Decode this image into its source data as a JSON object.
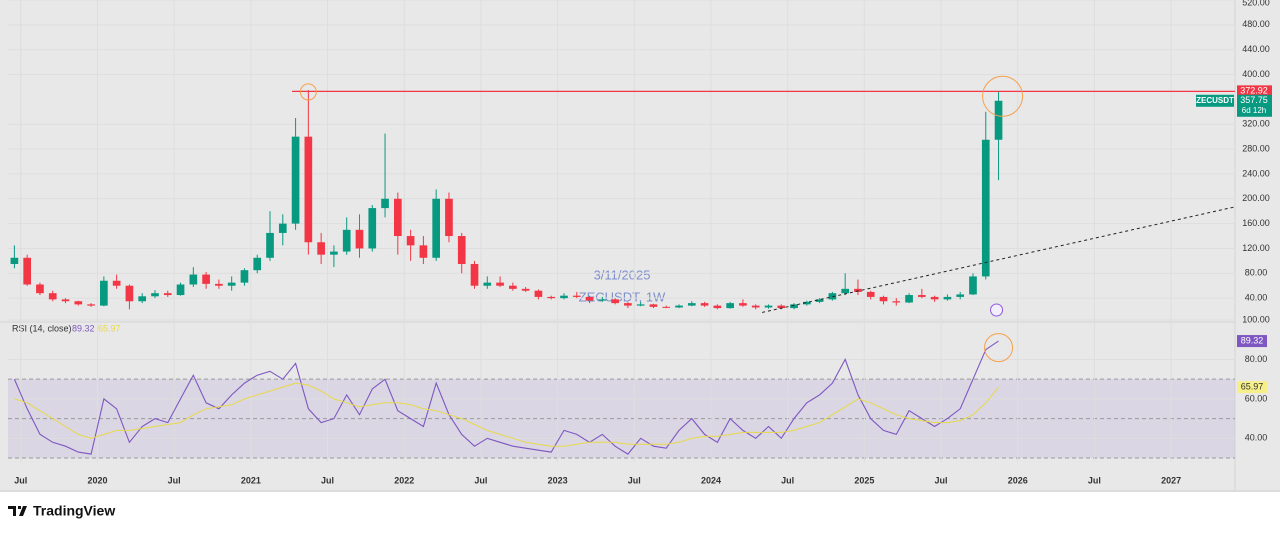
{
  "chart_data": [
    {
      "type": "candlestick",
      "symbol": "ZECUSDT",
      "watermark": [
        "3/11/2025",
        "ZECUSDT, 1W"
      ],
      "countdown": "6d 12h",
      "brand": "TradingView",
      "up_color": "#089981",
      "down_color": "#f23645",
      "x": [
        "2019-06",
        "2019-07",
        "2019-08",
        "2019-09",
        "2019-10",
        "2019-11",
        "2019-12",
        "2020-01",
        "2020-02",
        "2020-03",
        "2020-04",
        "2020-05",
        "2020-06",
        "2020-07",
        "2020-08",
        "2020-09",
        "2020-10",
        "2020-11",
        "2020-12",
        "2021-01",
        "2021-02",
        "2021-03",
        "2021-04",
        "2021-05",
        "2021-06",
        "2021-07",
        "2021-08",
        "2021-09",
        "2021-10",
        "2021-11",
        "2021-12",
        "2022-01",
        "2022-02",
        "2022-03",
        "2022-04",
        "2022-05",
        "2022-06",
        "2022-07",
        "2022-08",
        "2022-09",
        "2022-10",
        "2022-11",
        "2022-12",
        "2023-01",
        "2023-02",
        "2023-03",
        "2023-04",
        "2023-05",
        "2023-06",
        "2023-07",
        "2023-08",
        "2023-09",
        "2023-10",
        "2023-11",
        "2023-12",
        "2024-01",
        "2024-02",
        "2024-03",
        "2024-04",
        "2024-05",
        "2024-06",
        "2024-07",
        "2024-08",
        "2024-09",
        "2024-10",
        "2024-11",
        "2024-12",
        "2025-01",
        "2025-02",
        "2025-03",
        "2025-04",
        "2025-05",
        "2025-06",
        "2025-07",
        "2025-08",
        "2025-09",
        "2025-10",
        "2025-11"
      ],
      "open": [
        95,
        105,
        62,
        48,
        38,
        35,
        30,
        28,
        68,
        60,
        35,
        43,
        48,
        45,
        62,
        78,
        63,
        60,
        65,
        85,
        105,
        145,
        160,
        300,
        130,
        110,
        115,
        150,
        120,
        185,
        200,
        140,
        125,
        105,
        200,
        140,
        95,
        60,
        65,
        60,
        55,
        52,
        42,
        40,
        44,
        42,
        36,
        38,
        32,
        28,
        30,
        26,
        25,
        28,
        32,
        28,
        24,
        32,
        28,
        25,
        28,
        24,
        30,
        34,
        38,
        48,
        55,
        50,
        42,
        35,
        33,
        45,
        42,
        38,
        42,
        46,
        75,
        295
      ],
      "high": [
        125,
        110,
        65,
        52,
        40,
        36,
        32,
        75,
        78,
        62,
        48,
        53,
        52,
        65,
        90,
        82,
        70,
        75,
        88,
        110,
        180,
        175,
        330,
        375,
        145,
        125,
        170,
        175,
        190,
        305,
        210,
        150,
        140,
        215,
        210,
        145,
        100,
        75,
        75,
        65,
        58,
        54,
        44,
        48,
        50,
        44,
        42,
        40,
        34,
        34,
        31,
        28,
        30,
        35,
        34,
        30,
        34,
        38,
        30,
        30,
        30,
        32,
        36,
        40,
        50,
        80,
        70,
        52,
        44,
        40,
        48,
        55,
        44,
        46,
        50,
        80,
        340,
        372.92
      ],
      "low": [
        88,
        60,
        45,
        35,
        32,
        28,
        26,
        27,
        55,
        22,
        32,
        40,
        42,
        44,
        58,
        55,
        55,
        52,
        60,
        80,
        100,
        125,
        150,
        110,
        95,
        90,
        110,
        105,
        115,
        170,
        110,
        100,
        95,
        100,
        130,
        80,
        55,
        55,
        58,
        52,
        50,
        38,
        38,
        38,
        40,
        32,
        34,
        30,
        24,
        27,
        24,
        24,
        24,
        27,
        26,
        22,
        23,
        26,
        22,
        23,
        22,
        22,
        28,
        32,
        36,
        45,
        45,
        38,
        30,
        28,
        32,
        40,
        34,
        36,
        38,
        45,
        70,
        230
      ],
      "close": [
        105,
        62,
        48,
        38,
        35,
        30,
        28,
        68,
        60,
        35,
        43,
        48,
        45,
        62,
        78,
        63,
        60,
        65,
        85,
        105,
        145,
        160,
        300,
        130,
        110,
        115,
        150,
        120,
        185,
        200,
        140,
        125,
        105,
        200,
        140,
        95,
        60,
        65,
        60,
        55,
        52,
        42,
        40,
        44,
        42,
        36,
        38,
        32,
        28,
        30,
        26,
        25,
        28,
        32,
        28,
        24,
        32,
        28,
        25,
        28,
        24,
        30,
        34,
        38,
        48,
        55,
        50,
        42,
        35,
        33,
        45,
        42,
        38,
        42,
        46,
        75,
        295,
        357.75
      ],
      "resistance": 372.92,
      "resistance_from": "2021-05",
      "resistance_color": "#f23645",
      "trendline": {
        "x": [
          "2024-05",
          "2027-06"
        ],
        "values": [
          17,
          187
        ]
      },
      "xlim": [
        "2019-06",
        "2027-06"
      ],
      "xticks": [
        {
          "value": "2019-07",
          "label": "Jul"
        },
        {
          "value": "2020-01",
          "label": "2020"
        },
        {
          "value": "2020-07",
          "label": "Jul"
        },
        {
          "value": "2021-01",
          "label": "2021"
        },
        {
          "value": "2021-07",
          "label": "Jul"
        },
        {
          "value": "2022-01",
          "label": "2022"
        },
        {
          "value": "2022-07",
          "label": "Jul"
        },
        {
          "value": "2023-01",
          "label": "2023"
        },
        {
          "value": "2023-07",
          "label": "Jul"
        },
        {
          "value": "2024-01",
          "label": "2024"
        },
        {
          "value": "2024-07",
          "label": "Jul"
        },
        {
          "value": "2025-01",
          "label": "2025"
        },
        {
          "value": "2025-07",
          "label": "Jul"
        },
        {
          "value": "2026-01",
          "label": "2026"
        },
        {
          "value": "2026-07",
          "label": "Jul"
        },
        {
          "value": "2027-01",
          "label": "2027"
        }
      ],
      "ylim": [
        0,
        520
      ],
      "yticks": [
        {
          "value": 40,
          "label": "40.00"
        },
        {
          "value": 80,
          "label": "80.00"
        },
        {
          "value": 120,
          "label": "120.00"
        },
        {
          "value": 160,
          "label": "160.00"
        },
        {
          "value": 200,
          "label": "200.00"
        },
        {
          "value": 240,
          "label": "240.00"
        },
        {
          "value": 280,
          "label": "280.00"
        },
        {
          "value": 320,
          "label": "320.00"
        },
        {
          "value": 400,
          "label": "400.00"
        },
        {
          "value": 440,
          "label": "440.00"
        },
        {
          "value": 480,
          "label": "480.00"
        },
        {
          "value": 520,
          "label": "520.00"
        }
      ],
      "grid": true
    },
    {
      "type": "line",
      "title": "RSI (14, close)",
      "series": [
        {
          "color": "#7e57c2",
          "values": [
            70,
            55,
            42,
            38,
            36,
            33,
            32,
            60,
            55,
            38,
            46,
            50,
            48,
            60,
            72,
            58,
            55,
            62,
            68,
            72,
            74,
            70,
            78,
            55,
            48,
            50,
            62,
            52,
            65,
            70,
            54,
            50,
            46,
            68,
            52,
            42,
            36,
            40,
            38,
            36,
            35,
            34,
            33,
            44,
            42,
            38,
            42,
            36,
            32,
            40,
            36,
            35,
            44,
            50,
            42,
            38,
            50,
            44,
            40,
            46,
            40,
            50,
            58,
            62,
            68,
            80,
            62,
            50,
            44,
            42,
            54,
            50,
            46,
            50,
            55,
            70,
            85,
            89.32
          ]
        },
        {
          "color": "#e8d94a",
          "values": [
            60,
            58,
            54,
            50,
            46,
            42,
            40,
            42,
            44,
            44,
            45,
            46,
            47,
            48,
            52,
            55,
            56,
            57,
            60,
            62,
            64,
            66,
            68,
            67,
            64,
            60,
            58,
            56,
            57,
            58,
            58,
            57,
            55,
            54,
            52,
            50,
            47,
            44,
            42,
            40,
            38,
            37,
            36,
            36,
            37,
            38,
            38,
            38,
            37,
            37,
            37,
            37,
            38,
            40,
            41,
            41,
            42,
            43,
            43,
            43,
            43,
            44,
            46,
            48,
            52,
            56,
            60,
            58,
            55,
            52,
            50,
            49,
            48,
            48,
            49,
            52,
            58,
            65.97
          ]
        }
      ],
      "bands": [
        70,
        50,
        30
      ],
      "band_fill": "#7e57c2",
      "ylim": [
        28,
        100
      ],
      "yticks": [
        {
          "value": 40,
          "label": "40.00"
        },
        {
          "value": 60,
          "label": "60.00"
        },
        {
          "value": 80,
          "label": "80.00"
        },
        {
          "value": 100,
          "label": "100.00"
        }
      ]
    }
  ]
}
